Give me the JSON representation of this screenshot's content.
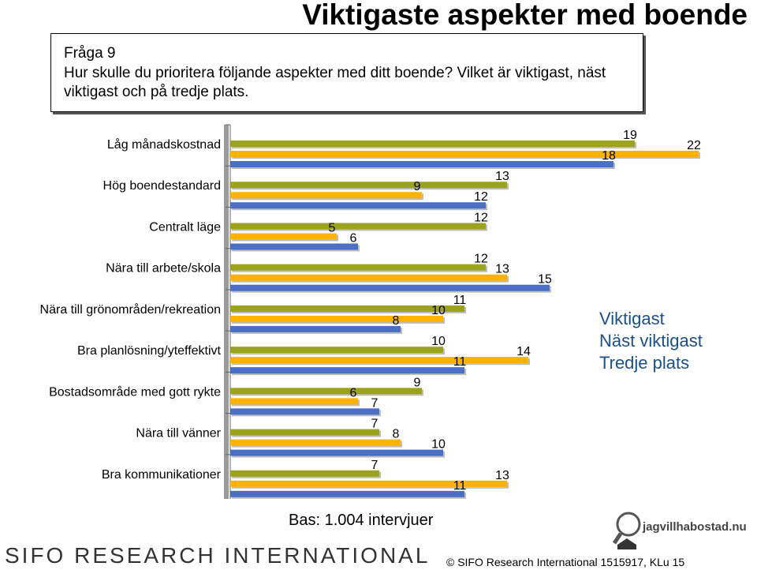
{
  "title": "Viktigaste aspekter med boende",
  "question": {
    "heading": "Fråga 9",
    "text": "Hur skulle du prioritera följande aspekter med ditt boende? Vilket är viktigast, näst viktigast och på tredje plats."
  },
  "colors": {
    "viktigast": "#9aa31a",
    "nast_viktigast": "#ffb300",
    "tredje_plats": "#4a6fc4",
    "legend_viktigast": "#1a4f8a",
    "legend_nast": "#1a4f8a",
    "legend_tredje": "#1a4f8a"
  },
  "chart_data": {
    "type": "bar",
    "orientation": "horizontal",
    "categories": [
      "Låg månadskostnad",
      "Hög boendestandard",
      "Centralt läge",
      "Nära till arbete/skola",
      "Nära till grönområden/rekreation",
      "Bra planlösning/yteffektivt",
      "Bostadsområde med gott rykte",
      "Nära till vänner",
      "Bra kommunikationer"
    ],
    "series": [
      {
        "name": "Viktigast",
        "values": [
          19,
          13,
          12,
          12,
          11,
          10,
          9,
          7,
          7
        ]
      },
      {
        "name": "Näst viktigast",
        "values": [
          22,
          9,
          5,
          13,
          10,
          14,
          6,
          8,
          13
        ]
      },
      {
        "name": "Tredje plats",
        "values": [
          18,
          12,
          6,
          15,
          8,
          11,
          7,
          10,
          11
        ]
      }
    ],
    "xlim": [
      0,
      22
    ],
    "legend_position": "right"
  },
  "legend": {
    "viktigast": "Viktigast",
    "nast_viktigast": "Näst viktigast",
    "tredje_plats": "Tredje plats"
  },
  "base_text": "Bas: 1.004 intervjuer",
  "footer": {
    "sifo_logo": "SIFO RESEARCH INTERNATIONAL",
    "copyright": "©  SIFO Research International 1515917, KLu 15",
    "brand": "jagvillhabostad.nu"
  }
}
